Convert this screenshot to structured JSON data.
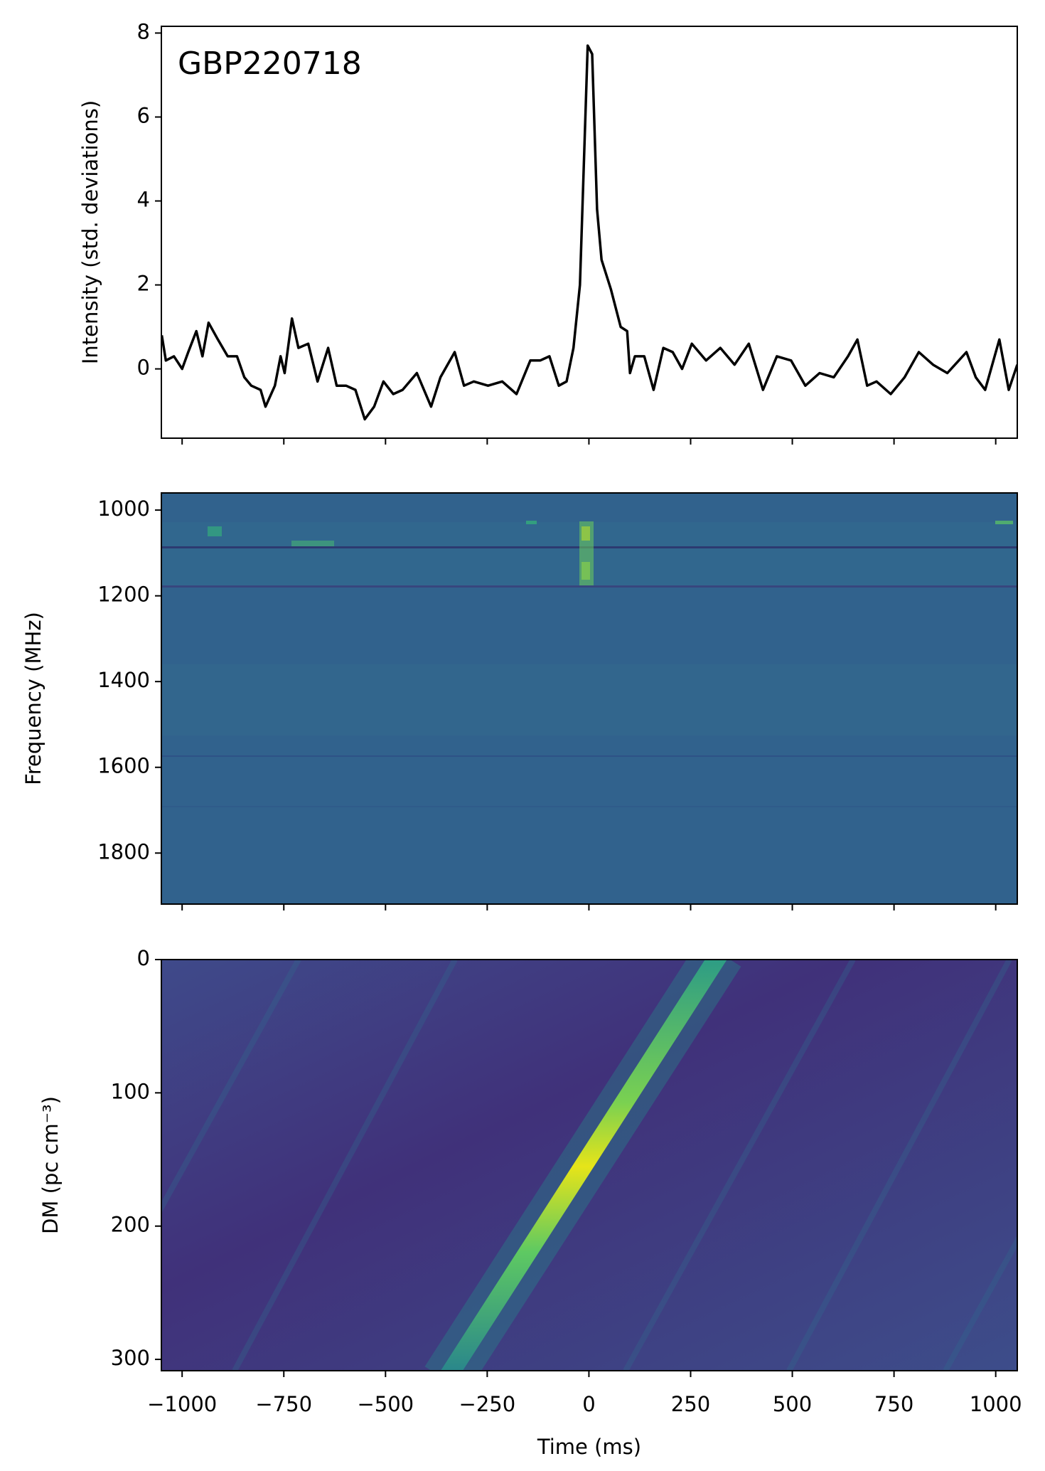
{
  "chart_data": [
    {
      "type": "line",
      "annotation": "GBP220718",
      "ylabel": "Intensity (std. deviations)",
      "color": "#000000",
      "x": [
        -1050,
        -1040,
        -1020,
        -1000,
        -985,
        -965,
        -950,
        -935,
        -912,
        -888,
        -865,
        -847,
        -830,
        -807,
        -795,
        -772,
        -758,
        -748,
        -730,
        -714,
        -690,
        -667,
        -641,
        -620,
        -597,
        -574,
        -551,
        -528,
        -505,
        -481,
        -458,
        -423,
        -388,
        -365,
        -330,
        -307,
        -283,
        -248,
        -213,
        -178,
        -144,
        -120,
        -97,
        -74,
        -55,
        -38,
        -22,
        -3,
        8,
        20,
        31,
        54,
        78,
        94,
        101,
        113,
        136,
        159,
        183,
        206,
        229,
        253,
        288,
        323,
        358,
        393,
        428,
        462,
        497,
        532,
        567,
        602,
        637,
        660,
        684,
        707,
        742,
        776,
        811,
        846,
        881,
        928,
        951,
        974,
        1009,
        1032,
        1053
      ],
      "values": [
        0.8,
        0.2,
        0.3,
        0.0,
        0.4,
        0.9,
        0.3,
        1.1,
        0.7,
        0.3,
        0.3,
        -0.2,
        -0.4,
        -0.5,
        -0.9,
        -0.4,
        0.3,
        -0.1,
        1.2,
        0.5,
        0.6,
        -0.3,
        0.5,
        -0.4,
        -0.4,
        -0.5,
        -1.2,
        -0.9,
        -0.3,
        -0.6,
        -0.5,
        -0.1,
        -0.9,
        -0.2,
        0.4,
        -0.4,
        -0.3,
        -0.4,
        -0.3,
        -0.6,
        0.2,
        0.2,
        0.3,
        -0.4,
        -0.3,
        0.5,
        2.0,
        7.7,
        7.5,
        3.8,
        2.6,
        1.9,
        1.0,
        0.9,
        -0.1,
        0.3,
        0.3,
        -0.5,
        0.5,
        0.4,
        0.0,
        0.6,
        0.2,
        0.5,
        0.1,
        0.6,
        -0.5,
        0.3,
        0.2,
        -0.4,
        -0.1,
        -0.2,
        0.3,
        0.7,
        -0.4,
        -0.3,
        -0.6,
        -0.2,
        0.4,
        0.1,
        -0.1,
        0.4,
        -0.2,
        -0.5,
        0.7,
        -0.5,
        0.1
      ],
      "xlim": [
        -1051,
        1053
      ],
      "xticks": [
        {
          "value": -1000,
          "label": "−1000"
        },
        {
          "value": -750,
          "label": "−750"
        },
        {
          "value": -500,
          "label": "−500"
        },
        {
          "value": -250,
          "label": "−250"
        },
        0,
        250,
        500,
        750,
        1000
      ],
      "ylim": [
        -1.65,
        8.16
      ],
      "yticks": [
        0,
        2,
        4,
        6,
        8
      ]
    },
    {
      "type": "heatmap",
      "ylabel": "Frequency (MHz)",
      "xlim": [
        -1051,
        1053
      ],
      "xticks": [
        {
          "value": -1000,
          "label": "−1000"
        },
        {
          "value": -750,
          "label": "−750"
        },
        {
          "value": -500,
          "label": "−500"
        },
        {
          "value": -250,
          "label": "−250"
        },
        0,
        250,
        500,
        750,
        1000
      ],
      "ylim": [
        1919,
        960
      ],
      "yticks": [
        1000,
        1200,
        1400,
        1600,
        1800
      ]
    },
    {
      "type": "heatmap",
      "ylabel": "DM (pc cm⁻³)",
      "xlabel": "Time (ms)",
      "xlim": [
        -1051,
        1053
      ],
      "xticks": [
        {
          "value": -1000,
          "label": "−1000"
        },
        {
          "value": -750,
          "label": "−750"
        },
        {
          "value": -500,
          "label": "−500"
        },
        {
          "value": -250,
          "label": "−250"
        },
        0,
        250,
        500,
        750,
        1000
      ],
      "ylim": [
        308.5,
        0
      ],
      "yticks": [
        0,
        100,
        200,
        300
      ]
    }
  ]
}
